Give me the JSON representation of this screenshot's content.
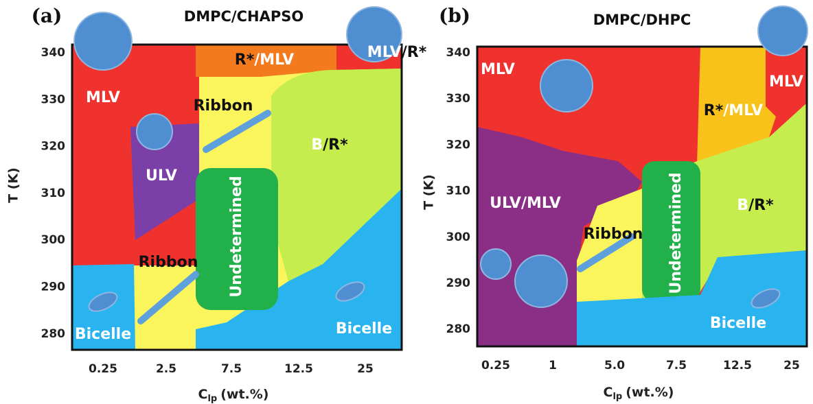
{
  "panels": [
    {
      "label": "(a)",
      "title": "DMPC/CHAPSO",
      "y_axis_label": "T (K)",
      "y_ticks": [
        "340",
        "330",
        "320",
        "310",
        "300",
        "290",
        "280"
      ],
      "x_ticks": [
        "0.25",
        "2.5",
        "7.5",
        "12.5",
        "25"
      ],
      "x_axis_label": {
        "main": "C",
        "sub": "lp",
        "unit": "(wt.%)"
      },
      "regions": [
        [
          "MLV"
        ],
        [
          "ULV"
        ],
        [
          "Ribbon"
        ],
        [
          "Ribbon"
        ],
        [
          "Undetermined"
        ],
        [
          "Bicelle"
        ],
        [
          "Bicelle"
        ],
        [
          "R*",
          "/MLV"
        ],
        [
          "B",
          "/R*"
        ],
        [
          "MLV",
          "/R*"
        ]
      ]
    },
    {
      "label": "(b)",
      "title": "DMPC/DHPC",
      "y_axis_label": "T (K)",
      "y_ticks": [
        "340",
        "330",
        "320",
        "310",
        "300",
        "290",
        "280"
      ],
      "x_ticks": [
        "0.25",
        "1",
        "5.0",
        "7.5",
        "12.5",
        "25"
      ],
      "x_axis_label": {
        "main": "C",
        "sub": "lp",
        "unit": "(wt.%)"
      },
      "regions": [
        [
          "MLV"
        ],
        [
          "MLV"
        ],
        [
          "R*",
          "/MLV"
        ],
        [
          "ULV/MLV"
        ],
        [
          "Ribbon"
        ],
        [
          "Undetermined"
        ],
        [
          "B",
          "/R*"
        ],
        [
          "Bicelle"
        ]
      ]
    }
  ]
}
